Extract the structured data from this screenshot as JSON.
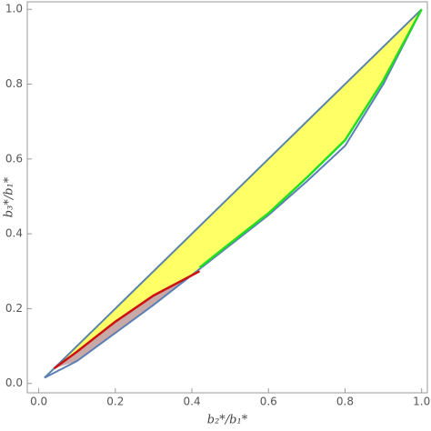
{
  "chart_data": {
    "type": "line",
    "x_label": "b₂*/b₁*",
    "y_label": "b₃*/b₁*",
    "xlim": [
      -0.03,
      1.015
    ],
    "ylim": [
      -0.025,
      1.02
    ],
    "xticks": [
      {
        "value": 0,
        "label": "0.0"
      },
      0.2,
      0.4,
      0.6,
      0.8,
      {
        "value": 1,
        "label": "1.0"
      }
    ],
    "yticks": [
      {
        "value": 0,
        "label": "0.0"
      },
      0.2,
      0.4,
      0.6,
      0.8,
      {
        "value": 1,
        "label": "1.0"
      }
    ],
    "fill_colors": [
      "#ffff66",
      "#c9a8a8"
    ],
    "series": [
      {
        "color": "#5a84a8",
        "x": [
          0.015,
          1
        ],
        "y": [
          0.015,
          1
        ]
      },
      {
        "color": "#5b7fb5",
        "x": [
          0.015,
          0.1,
          0.2,
          0.3,
          0.4,
          0.5,
          0.6,
          0.7,
          0.8,
          0.9,
          1
        ],
        "y": [
          0.015,
          0.06,
          0.135,
          0.21,
          0.29,
          0.37,
          0.45,
          0.54,
          0.635,
          0.8,
          1
        ]
      },
      {
        "color": "#22dd22",
        "x": [
          0.42,
          0.5,
          0.6,
          0.7,
          0.8,
          0.9,
          1
        ],
        "y": [
          0.31,
          0.375,
          0.455,
          0.55,
          0.65,
          0.81,
          1
        ]
      },
      {
        "color": "#cc1111",
        "x": [
          0.04,
          0.1,
          0.2,
          0.3,
          0.42
        ],
        "y": [
          0.04,
          0.085,
          0.165,
          0.235,
          0.3
        ]
      }
    ]
  }
}
